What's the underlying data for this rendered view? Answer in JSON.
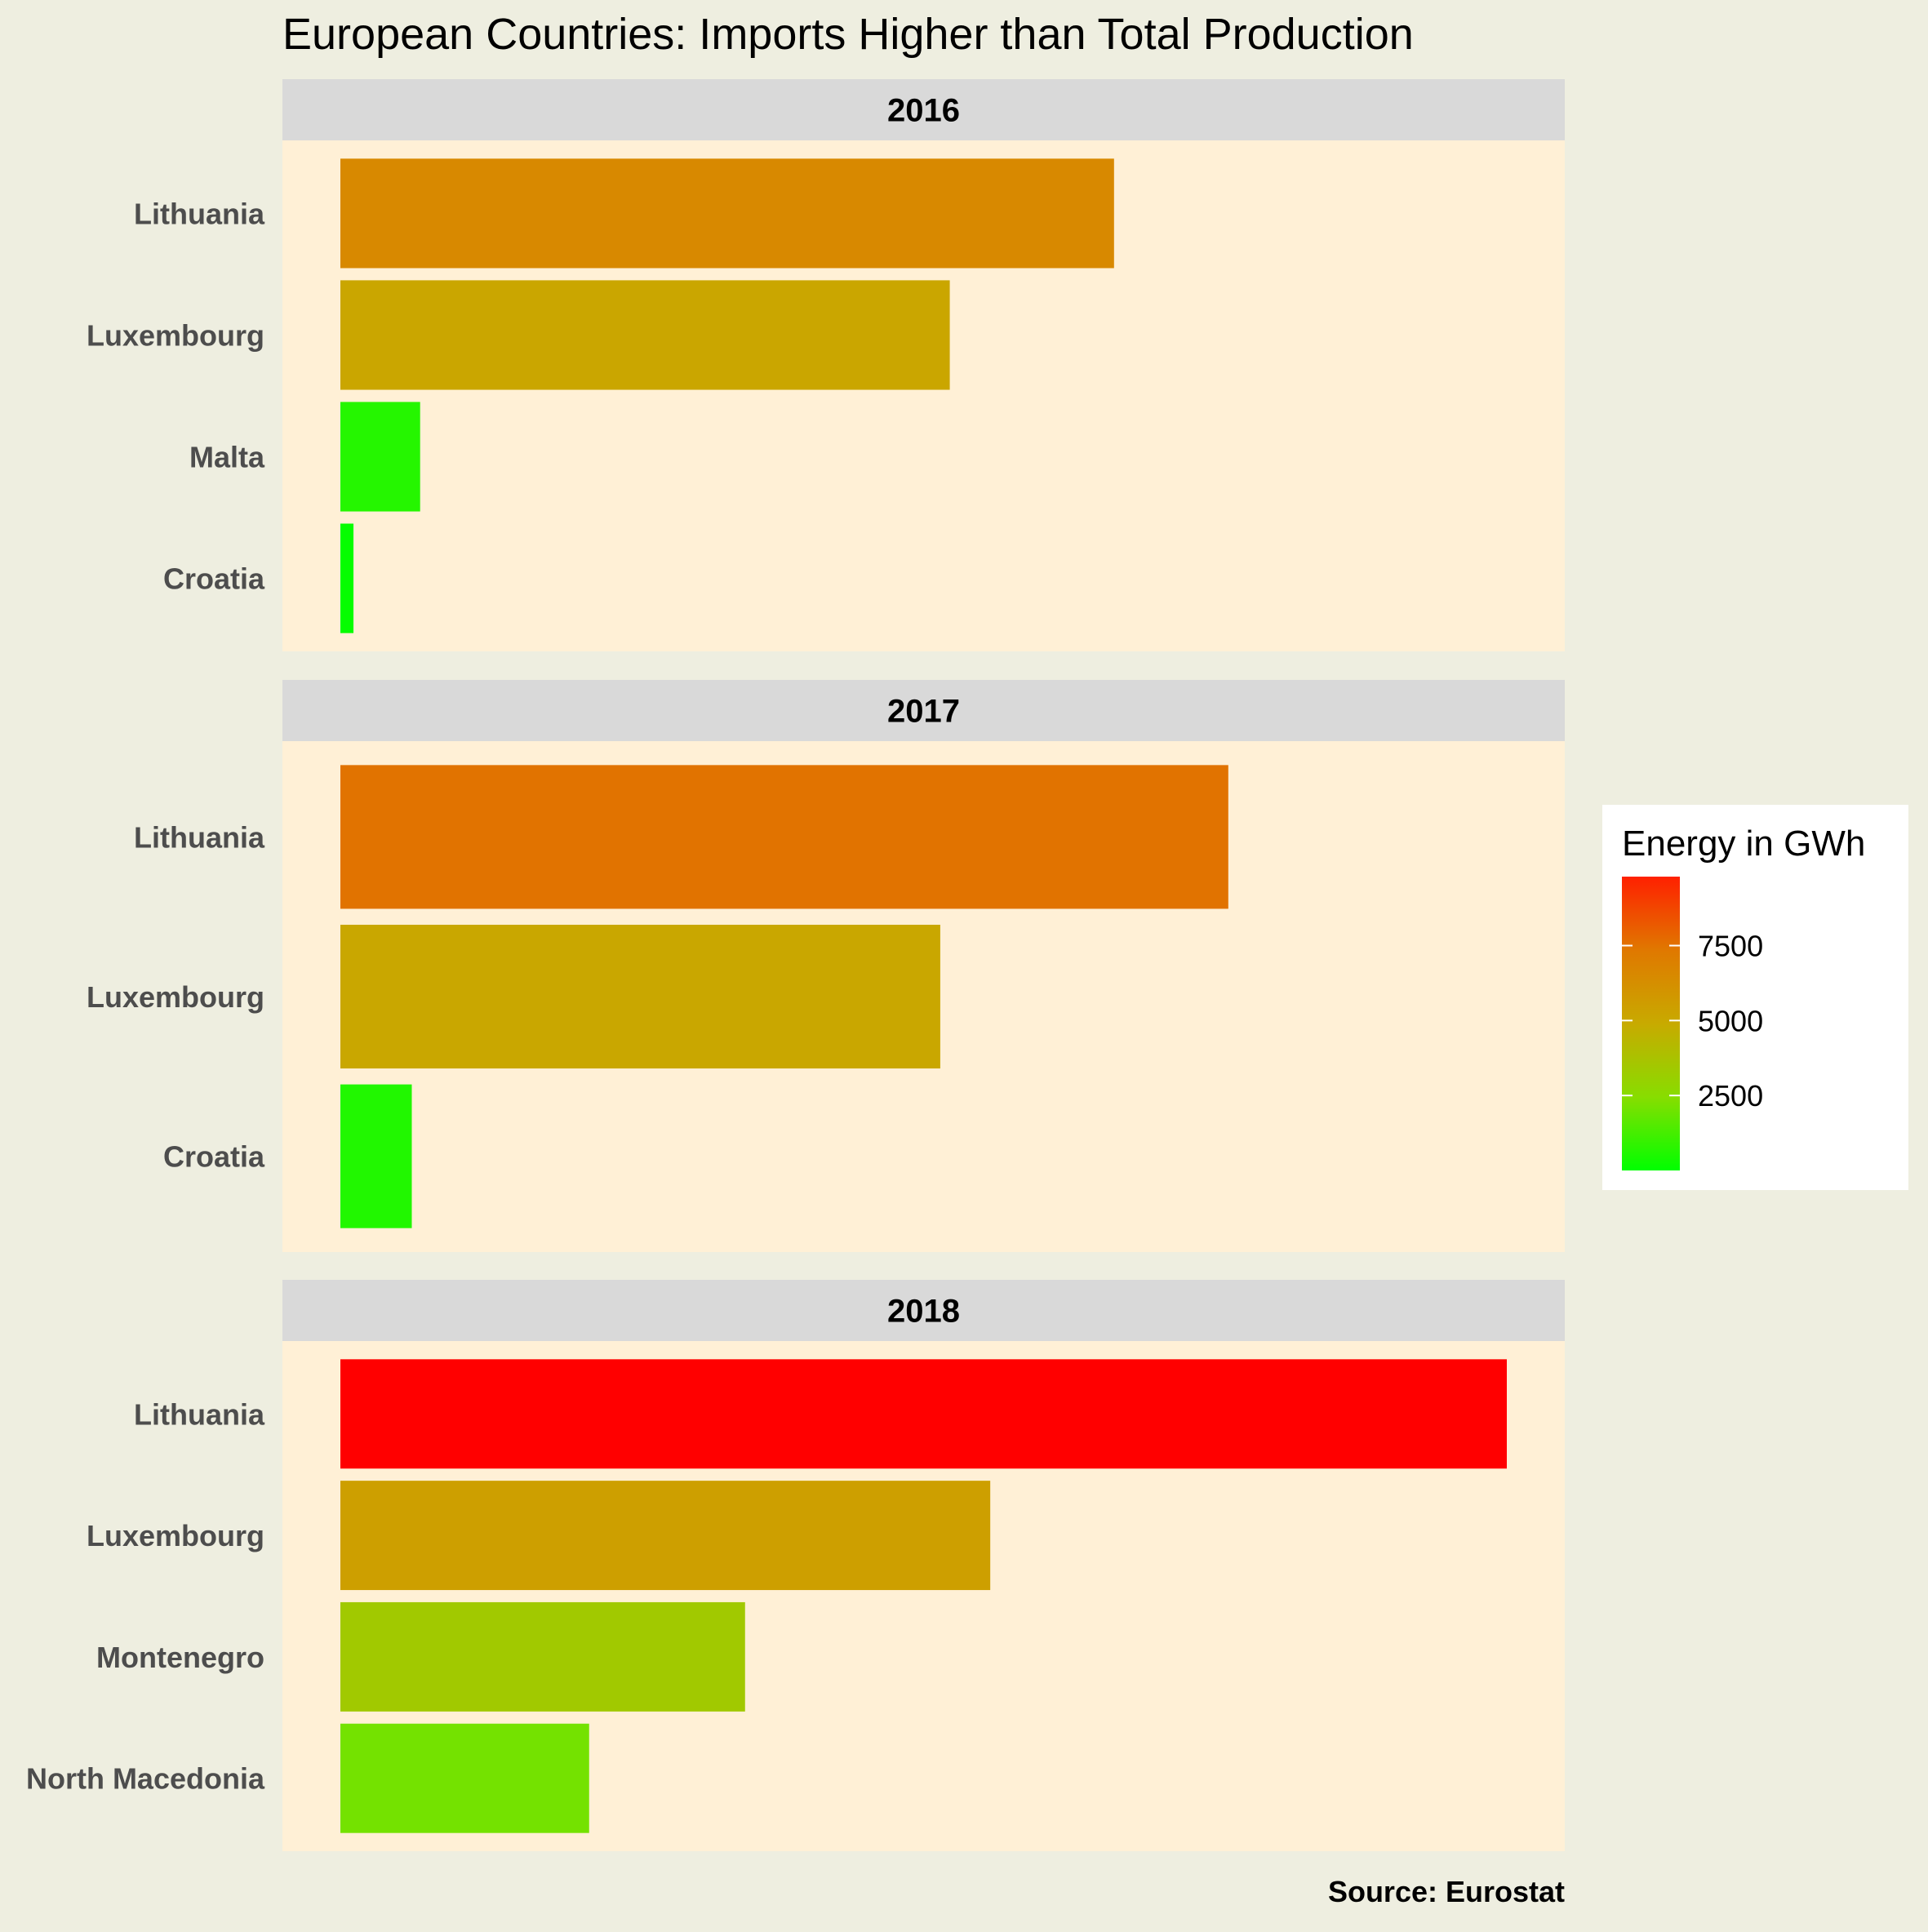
{
  "chart_data": {
    "type": "bar",
    "orientation": "horizontal",
    "title": "European Countries: Imports Higher than Total Production",
    "caption": "Source: Eurostat",
    "xlabel": "",
    "ylabel": "",
    "x_axis_visible": false,
    "grid": false,
    "x_domain": [
      0,
      9800
    ],
    "legend": {
      "title": "Energy in GWh",
      "position": "right",
      "type": "colorbar",
      "range": [
        0,
        9800
      ],
      "breaks": [
        2500,
        5000,
        7500
      ],
      "low_color": "#00FF00",
      "high_color": "#FF0000"
    },
    "facets": [
      {
        "label": "2016",
        "categories": [
          "Lithuania",
          "Luxembourg",
          "Malta",
          "Croatia"
        ],
        "values": [
          6500,
          5120,
          670,
          110
        ]
      },
      {
        "label": "2017",
        "categories": [
          "Lithuania",
          "Luxembourg",
          "Croatia"
        ],
        "values": [
          7460,
          5040,
          600
        ]
      },
      {
        "label": "2018",
        "categories": [
          "Lithuania",
          "Luxembourg",
          "Montenegro",
          "North Macedonia"
        ],
        "values": [
          9800,
          5460,
          3400,
          2090
        ]
      }
    ]
  },
  "colors": {
    "page_background": "#EEEEE0",
    "panel_background": "#FFF0D6",
    "strip_background": "#D9D9D9",
    "legend_background": "#FFFFFF",
    "category_label": "#4D4D4D",
    "text_dark": "#000000"
  }
}
